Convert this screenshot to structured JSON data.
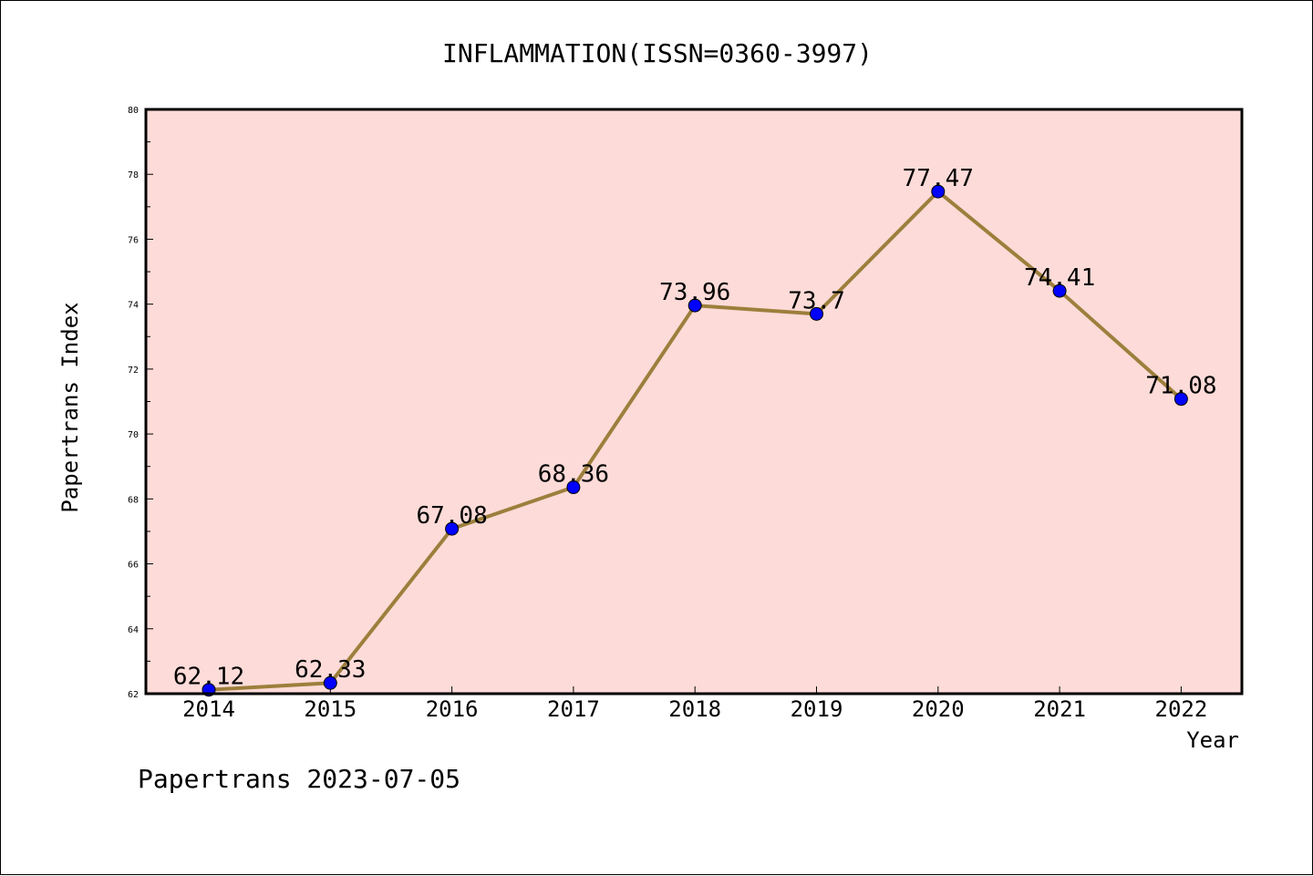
{
  "chart_data": {
    "type": "line",
    "title": "INFLAMMATION(ISSN=0360-3997)",
    "xlabel": "Year",
    "ylabel": "Papertrans Index",
    "categories": [
      "2014",
      "2015",
      "2016",
      "2017",
      "2018",
      "2019",
      "2020",
      "2021",
      "2022"
    ],
    "values": [
      62.12,
      62.33,
      67.08,
      68.36,
      73.96,
      73.7,
      77.47,
      74.41,
      71.08
    ],
    "value_labels": [
      "62.12",
      "62.33",
      "67.08",
      "68.36",
      "73.96",
      "73.7",
      "77.47",
      "74.41",
      "71.08"
    ],
    "ylim": [
      62,
      80
    ],
    "yticks": [
      62,
      64,
      66,
      68,
      70,
      72,
      74,
      76,
      78,
      80
    ],
    "grid": false,
    "colors": {
      "plot_background": "#fddbd8",
      "line": "#9c7f3c",
      "marker": "#0000ff"
    }
  },
  "footer": "Papertrans 2023-07-05"
}
